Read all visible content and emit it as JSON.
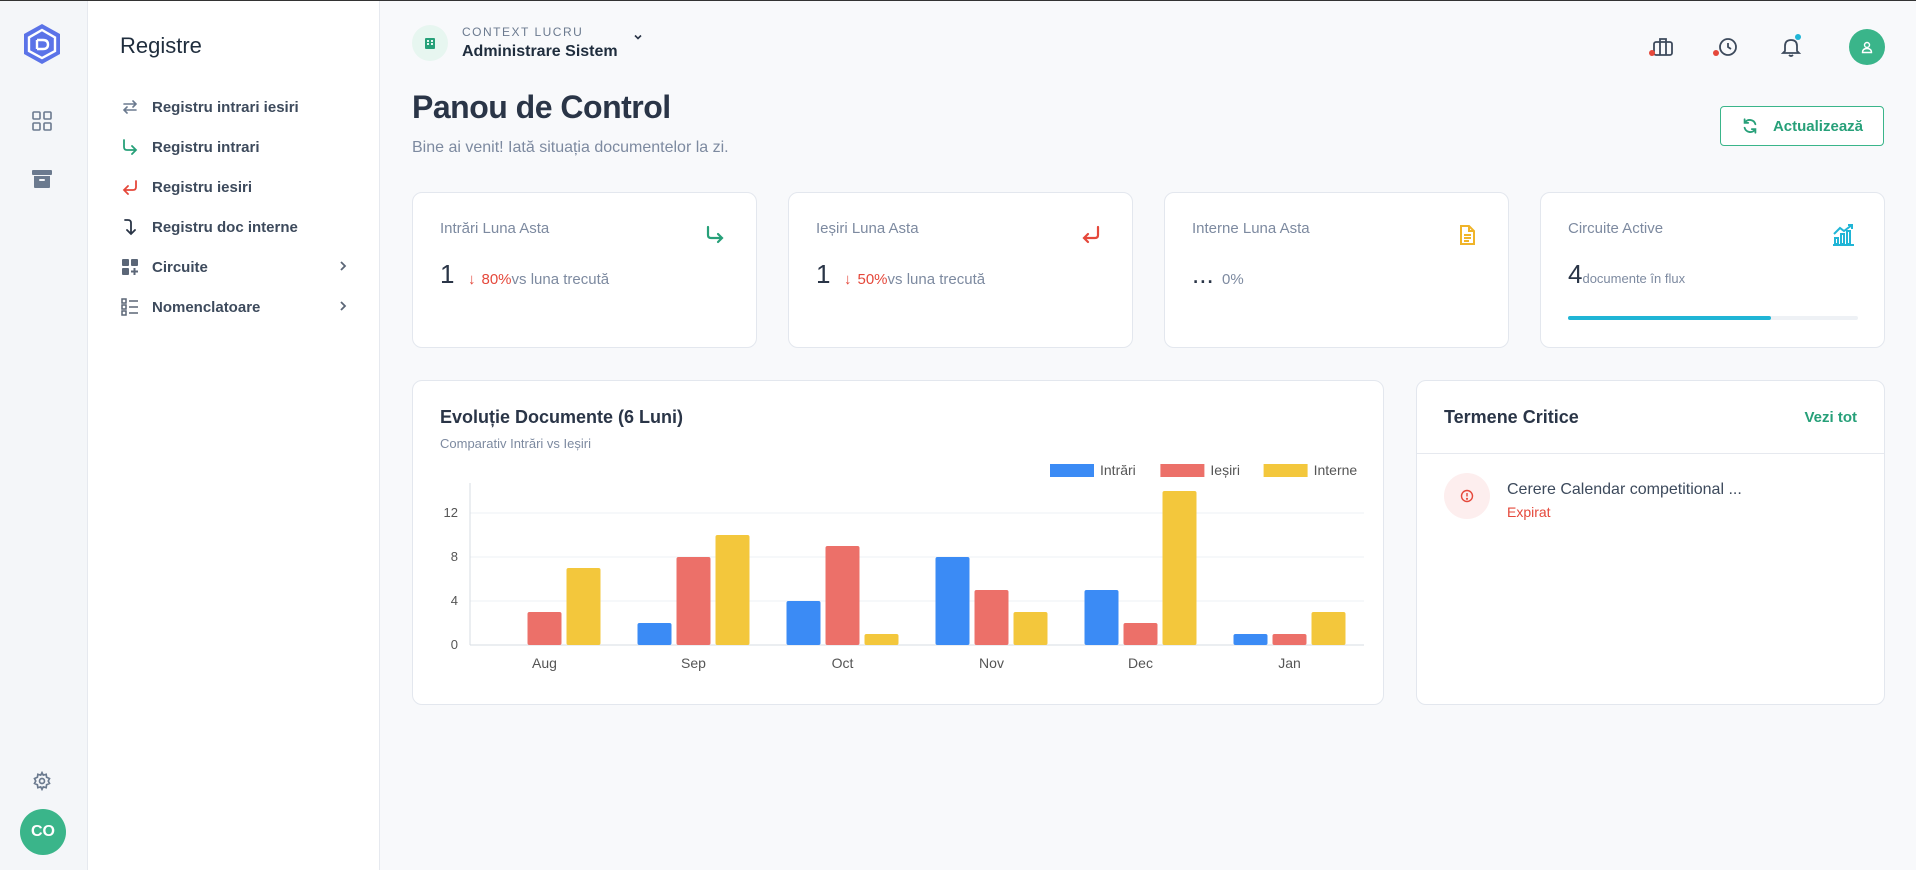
{
  "rail": {
    "nav": [
      {
        "icon": "grid-icon",
        "label": "Dashboard"
      },
      {
        "icon": "archive-icon",
        "label": "Archive"
      }
    ],
    "user_initials": "CO"
  },
  "menu": {
    "title": "Registre",
    "items": [
      {
        "label": "Registru intrari iesiri",
        "icon": "swap-arrows-icon",
        "color": "#6b7a8f"
      },
      {
        "label": "Registru intrari",
        "icon": "arrow-incoming-icon",
        "color": "#27a079"
      },
      {
        "label": "Registru iesiri",
        "icon": "arrow-outgoing-icon",
        "color": "#e5483b"
      },
      {
        "label": "Registru doc interne",
        "icon": "arrow-down-turn-icon",
        "color": "#2a3547"
      },
      {
        "label": "Circuite",
        "icon": "widgets-icon",
        "has_submenu": true
      },
      {
        "label": "Nomenclatoare",
        "icon": "list-icon",
        "has_submenu": true
      }
    ]
  },
  "context": {
    "label": "CONTEXT LUCRU",
    "value": "Administrare Sistem"
  },
  "header": {
    "title": "Panou de Control",
    "subtitle": "Bine ai venit! Iată situația documentelor la zi.",
    "refresh_label": "Actualizează"
  },
  "stats": [
    {
      "title": "Intrări Luna Asta",
      "value": "1",
      "arrow": "↓",
      "pct": "80%",
      "trend_text": "vs luna trecută",
      "icon": "arrow-incoming-icon",
      "color": "#27a079"
    },
    {
      "title": "Ieșiri Luna Asta",
      "value": "1",
      "arrow": "↓",
      "pct": "50%",
      "trend_text": "vs luna trecută",
      "icon": "arrow-outgoing-icon",
      "color": "#e5483b"
    },
    {
      "title": "Interne Luna Asta",
      "value": "...",
      "trend_text": "0%",
      "icon": "document-icon",
      "color": "#f0b429"
    },
    {
      "title": "Circuite Active",
      "value": "4",
      "trend_text": "documente în flux",
      "icon": "chart-up-icon",
      "color": "#20b5d6",
      "progress": 0.7
    }
  ],
  "chart_panel": {
    "title": "Evoluție Documente (6 Luni)",
    "subtitle": "Comparativ Intrări vs Ieșiri"
  },
  "chart_data": {
    "type": "bar",
    "categories": [
      "Aug",
      "Sep",
      "Oct",
      "Nov",
      "Dec",
      "Jan"
    ],
    "series": [
      {
        "name": "Intrări",
        "color": "#3b8bf5",
        "values": [
          0,
          2,
          4,
          8,
          5,
          1
        ]
      },
      {
        "name": "Ieșiri",
        "color": "#ec7069",
        "values": [
          3,
          8,
          9,
          5,
          2,
          1
        ]
      },
      {
        "name": "Interne",
        "color": "#f3c73c",
        "values": [
          7,
          10,
          1,
          3,
          14,
          3
        ]
      }
    ],
    "ylim": [
      0,
      14
    ],
    "yticks": [
      0,
      4,
      8,
      12
    ],
    "legend": "top-right",
    "grid": true
  },
  "deadlines": {
    "title": "Termene Critice",
    "link": "Vezi tot",
    "items": [
      {
        "name": "Cerere Calendar competitional ...",
        "status": "Expirat"
      }
    ]
  }
}
